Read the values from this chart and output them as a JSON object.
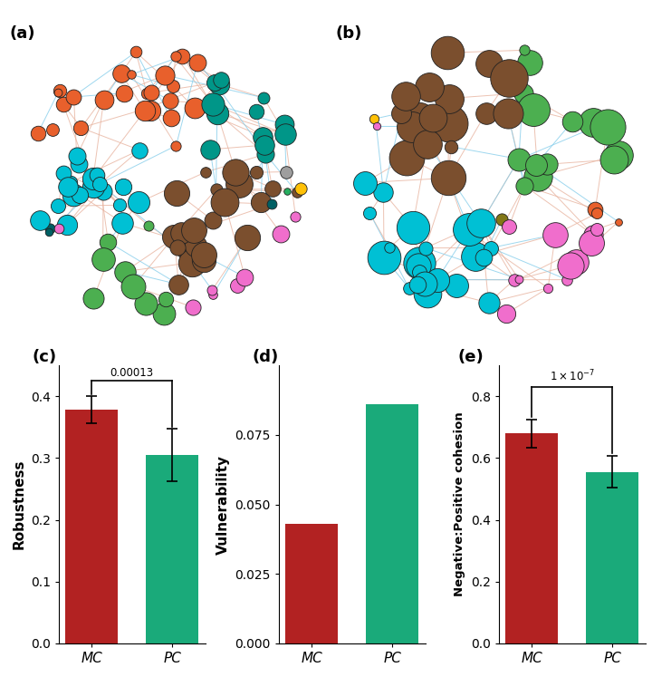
{
  "bar_colors_mc": "#b22222",
  "bar_colors_pc": "#1aaa7a",
  "robustness_values": [
    0.378,
    0.305
  ],
  "robustness_errors": [
    0.022,
    0.042
  ],
  "vulnerability_values": [
    0.043,
    0.086
  ],
  "vulnerability_errors": [
    0,
    0
  ],
  "cohesion_values": [
    0.68,
    0.555
  ],
  "cohesion_errors": [
    0.045,
    0.052
  ],
  "categories": [
    "MC",
    "PC"
  ],
  "robustness_ylim": [
    0,
    0.45
  ],
  "vulnerability_ylim": [
    0,
    0.1
  ],
  "cohesion_ylim": [
    0,
    0.9
  ],
  "robustness_yticks": [
    0.0,
    0.1,
    0.2,
    0.3,
    0.4
  ],
  "vulnerability_yticks": [
    0.0,
    0.025,
    0.05,
    0.075
  ],
  "cohesion_yticks": [
    0.0,
    0.2,
    0.4,
    0.6,
    0.8
  ],
  "robustness_pval": "0.00013",
  "panel_labels": [
    "(a)",
    "(b)",
    "(c)",
    "(d)",
    "(e)"
  ],
  "edge_color_pos": "#e8b4a0",
  "edge_color_neg": "#87ceeb"
}
